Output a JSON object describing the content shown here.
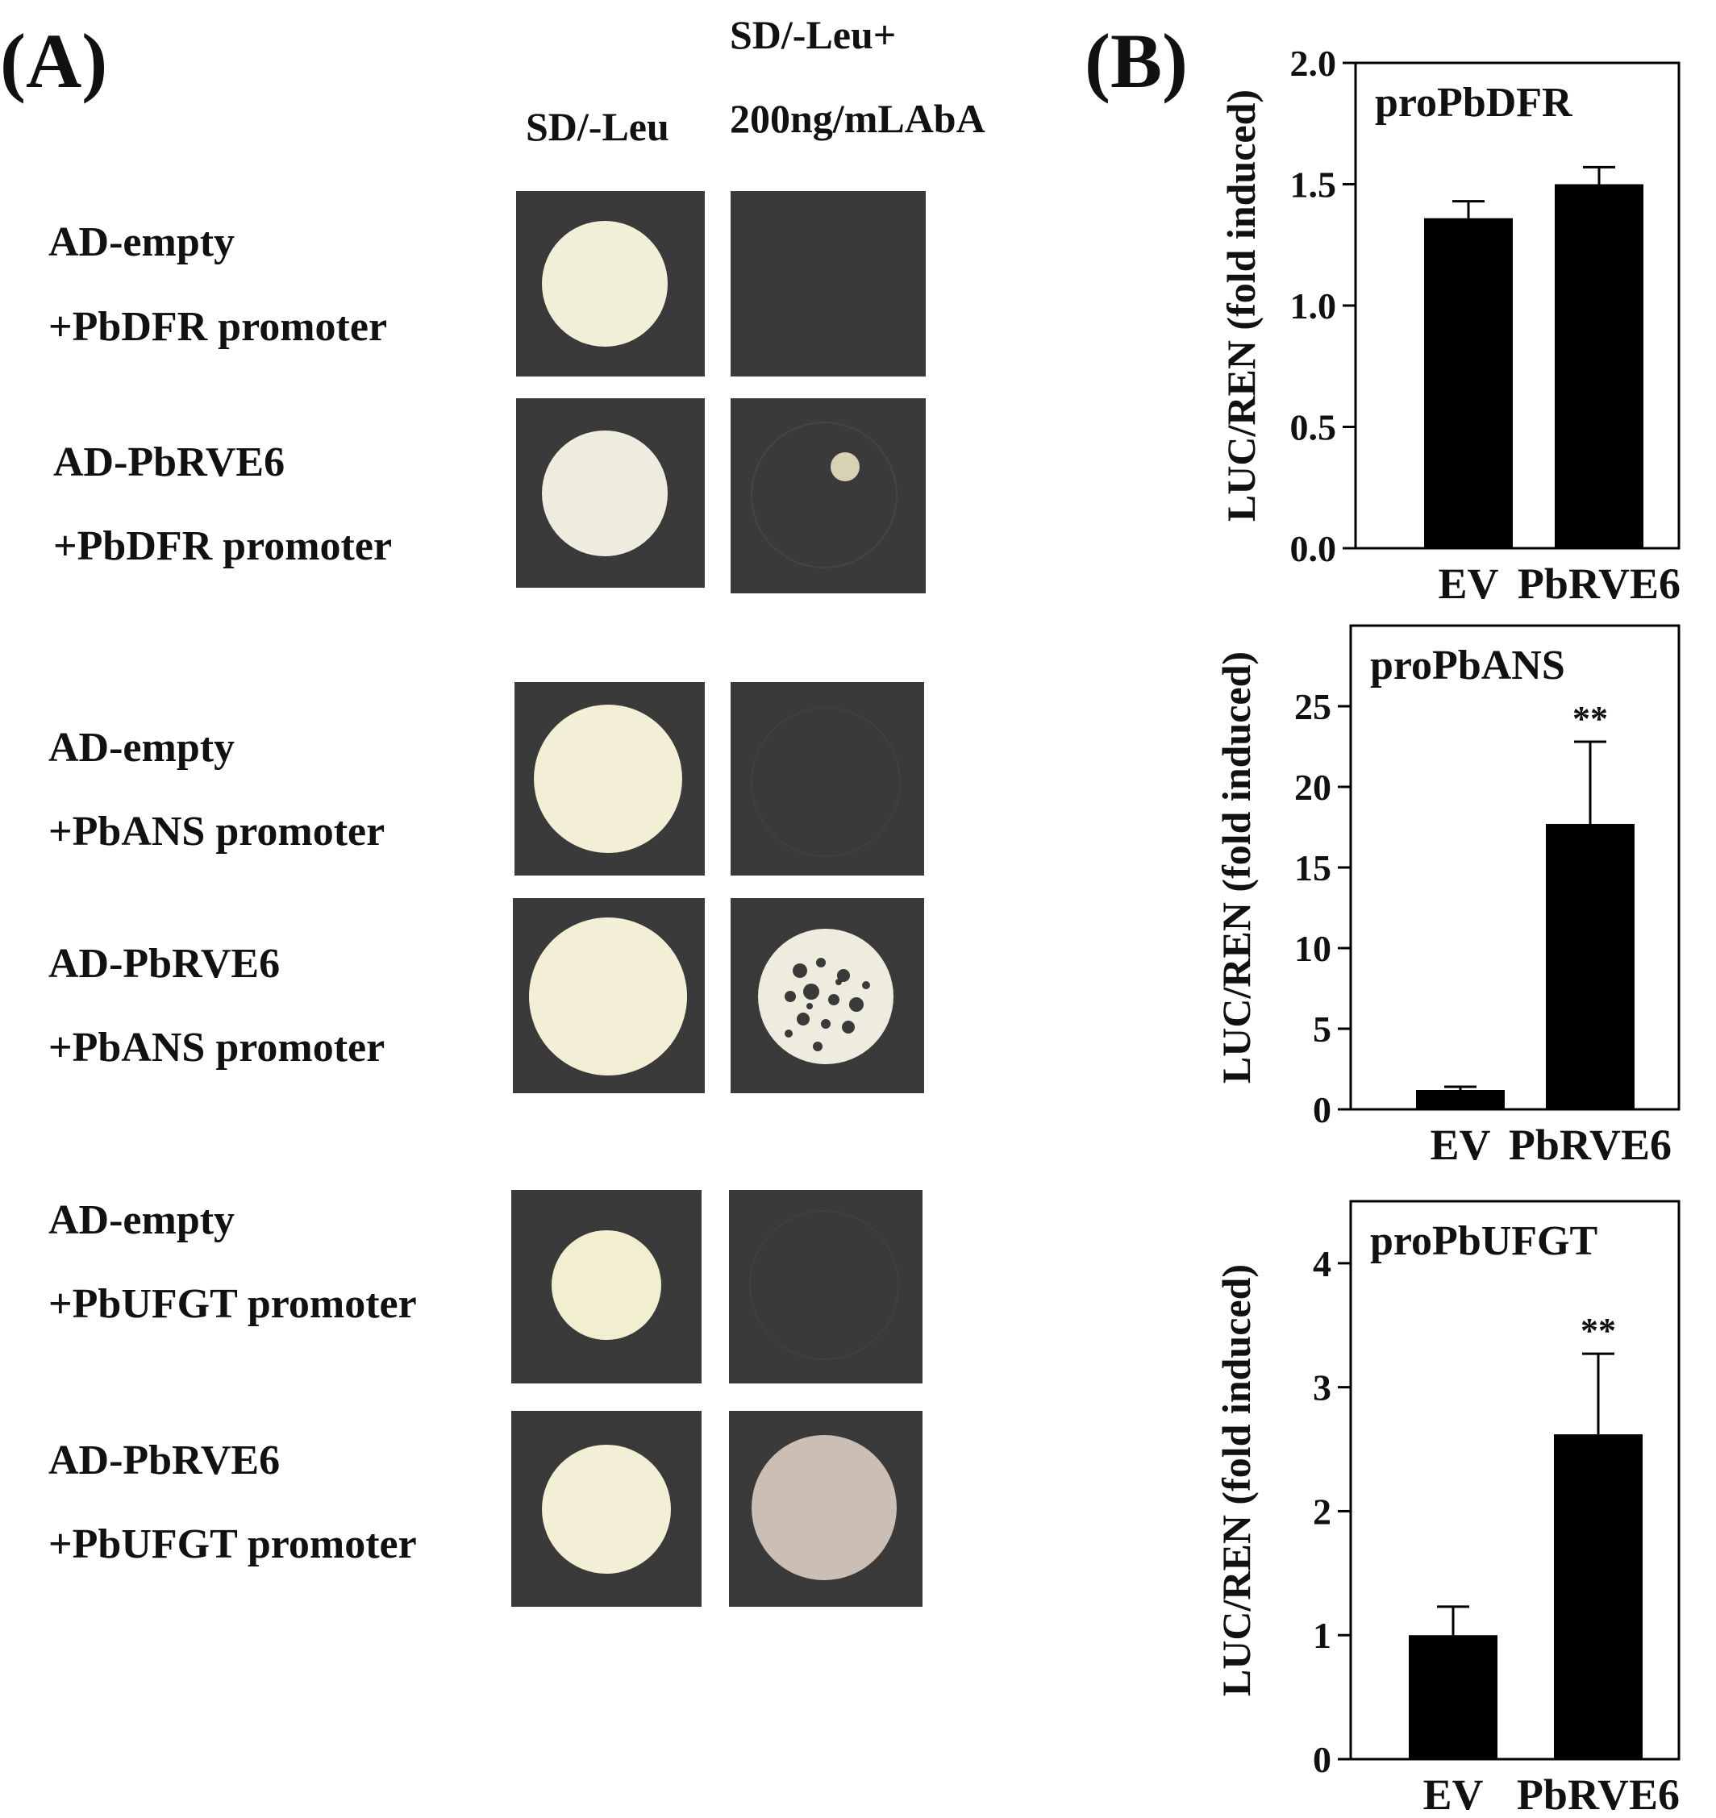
{
  "panels": {
    "a": "(A)",
    "b": "(B)"
  },
  "columns": {
    "sd_leu": "SD/-Leu",
    "aba_line1": "SD/-Leu+",
    "aba_line2": "200ng/mLAbA"
  },
  "rows": [
    {
      "line1": "AD-empty",
      "line2": "+PbDFR promoter"
    },
    {
      "line1": "AD-PbRVE6",
      "line2": "+PbDFR promoter"
    },
    {
      "line1": "AD-empty",
      "line2": "+PbANS promoter"
    },
    {
      "line1": "AD-PbRVE6",
      "line2": "+PbANS promoter"
    },
    {
      "line1": "AD-empty",
      "line2": "+PbUFGT promoter"
    },
    {
      "line1": "AD-PbRVE6",
      "line2": "+PbUFGT promoter"
    }
  ],
  "colors": {
    "plate": "#3a3a3a",
    "colony": "#f2efd8",
    "bar": "#000000",
    "colony_aba_ufgt": "#cbbfb5"
  },
  "chart_data": [
    {
      "type": "bar",
      "title": "proPbDFR",
      "ylabel": "LUC/REN (fold induced)",
      "categories": [
        "EV",
        "PbRVE6"
      ],
      "values": [
        1.36,
        1.5
      ],
      "errors": [
        0.07,
        0.07
      ],
      "significance": [
        "",
        ""
      ],
      "ylim": [
        0,
        2.0
      ],
      "yticks": [
        0.0,
        0.5,
        1.0,
        1.5,
        2.0
      ],
      "ytick_labels": [
        "0.0",
        "0.5",
        "1.0",
        "1.5",
        "2.0"
      ],
      "grid": false
    },
    {
      "type": "bar",
      "title": "proPbANS",
      "ylabel": "LUC/REN (fold induced)",
      "categories": [
        "EV",
        "PbRVE6"
      ],
      "values": [
        1.2,
        17.7
      ],
      "errors": [
        0.2,
        5.1
      ],
      "significance": [
        "",
        "**"
      ],
      "ylim": [
        0,
        30
      ],
      "yticks": [
        0,
        5,
        10,
        15,
        20,
        25
      ],
      "ytick_labels": [
        "0",
        "5",
        "10",
        "15",
        "20",
        "25"
      ],
      "grid": false
    },
    {
      "type": "bar",
      "title": "proPbUFGT",
      "ylabel": "LUC/REN (fold induced)",
      "categories": [
        "EV",
        "PbRVE6"
      ],
      "values": [
        1.0,
        2.62
      ],
      "errors": [
        0.23,
        0.65
      ],
      "significance": [
        "",
        "**"
      ],
      "ylim": [
        0,
        4.5
      ],
      "yticks": [
        0,
        1,
        2,
        3,
        4
      ],
      "ytick_labels": [
        "0",
        "1",
        "2",
        "3",
        "4"
      ],
      "grid": false
    }
  ]
}
